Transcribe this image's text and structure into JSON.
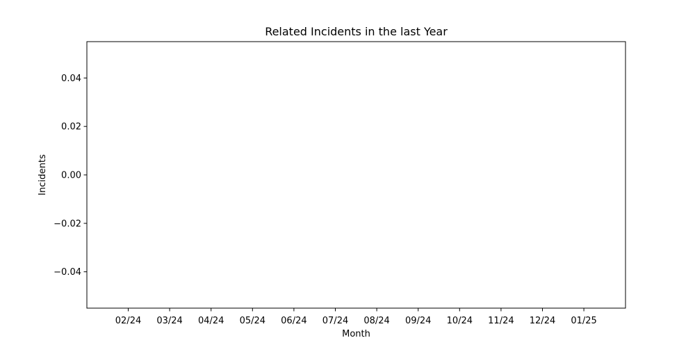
{
  "chart_data": {
    "type": "bar",
    "title": "Related Incidents in the last Year",
    "xlabel": "Month",
    "ylabel": "Incidents",
    "categories": [
      "02/24",
      "03/24",
      "04/24",
      "05/24",
      "06/24",
      "07/24",
      "08/24",
      "09/24",
      "10/24",
      "11/24",
      "12/24",
      "01/25"
    ],
    "values": [
      0,
      0,
      0,
      0,
      0,
      0,
      0,
      0,
      0,
      0,
      0,
      0
    ],
    "ylim": [
      -0.055,
      0.055
    ],
    "yticks": [
      -0.04,
      -0.02,
      0.0,
      0.02,
      0.04
    ],
    "ytick_labels": [
      "−0.04",
      "−0.02",
      "0.00",
      "0.02",
      "0.04"
    ],
    "grid": false,
    "colors": {
      "axes": "#000000",
      "background": "#ffffff",
      "bar": "#1f77b4"
    }
  }
}
